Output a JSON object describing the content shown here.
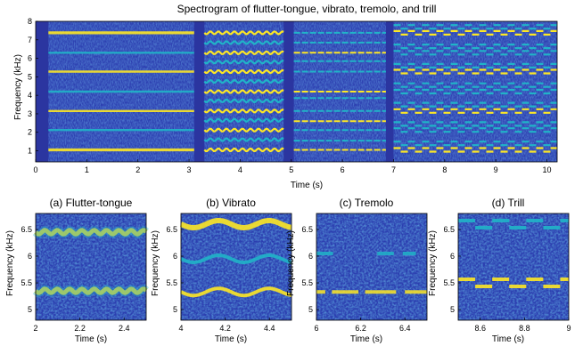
{
  "colors": {
    "background": "#2c3fb0",
    "noise_low": "#3049c0",
    "noise_high": "#2a8fd8",
    "band_mid": "#20b4c8",
    "band_high": "#fde725",
    "axis": "#000000"
  },
  "chart_data": [
    {
      "type": "heatmap",
      "title": "Spectrogram of flutter-tongue, vibrato, tremolo, and trill",
      "xlabel": "Time (s)",
      "ylabel": "Frequency (kHz)",
      "xlim": [
        0,
        10.2
      ],
      "ylim": [
        0.4,
        8
      ],
      "xticks": [
        "0",
        "1",
        "2",
        "3",
        "4",
        "5",
        "6",
        "7",
        "8",
        "9",
        "10"
      ],
      "yticks": [
        "1",
        "2",
        "3",
        "4",
        "5",
        "6",
        "7",
        "8"
      ],
      "segments": [
        {
          "technique": "flutter-tongue",
          "t_start": 0.25,
          "t_end": 3.1
        },
        {
          "technique": "vibrato",
          "t_start": 3.3,
          "t_end": 4.85
        },
        {
          "technique": "tremolo",
          "t_start": 5.05,
          "t_end": 6.85
        },
        {
          "technique": "trill",
          "t_start": 7.0,
          "t_end": 10.2
        }
      ]
    },
    {
      "type": "heatmap",
      "title": "(a) Flutter-tongue",
      "xlabel": "Time (s)",
      "ylabel": "Frequency (kHz)",
      "xlim": [
        2,
        2.5
      ],
      "ylim": [
        4.8,
        6.8
      ],
      "xticks": [
        "2",
        "2.2",
        "2.4"
      ],
      "yticks": [
        "5",
        "5.5",
        "6",
        "6.5"
      ],
      "bands_khz": [
        5.35,
        6.45
      ]
    },
    {
      "type": "heatmap",
      "title": "(b) Vibrato",
      "xlabel": "Time (s)",
      "ylabel": "Frequency (kHz)",
      "xlim": [
        4,
        4.5
      ],
      "ylim": [
        4.8,
        6.8
      ],
      "xticks": [
        "4",
        "4.2",
        "4.4"
      ],
      "yticks": [
        "5",
        "5.5",
        "6",
        "6.5"
      ],
      "bands_khz": [
        5.33,
        5.95,
        6.6
      ]
    },
    {
      "type": "heatmap",
      "title": "(c) Tremolo",
      "xlabel": "Time (s)",
      "ylabel": "Frequency (kHz)",
      "xlim": [
        6,
        6.5
      ],
      "ylim": [
        4.8,
        6.8
      ],
      "xticks": [
        "6",
        "6.2",
        "6.4"
      ],
      "yticks": [
        "5",
        "5.5",
        "6",
        "6.5"
      ],
      "bands_khz": [
        5.33,
        6.05
      ]
    },
    {
      "type": "heatmap",
      "title": "(d) Trill",
      "xlabel": "Time (s)",
      "ylabel": "Frequency (kHz)",
      "xlim": [
        8.5,
        9
      ],
      "ylim": [
        4.8,
        6.8
      ],
      "xticks": [
        "8.6",
        "8.8",
        "9"
      ],
      "yticks": [
        "5",
        "5.5",
        "6",
        "6.5"
      ],
      "bands_khz": [
        5.5,
        6.6
      ]
    }
  ]
}
